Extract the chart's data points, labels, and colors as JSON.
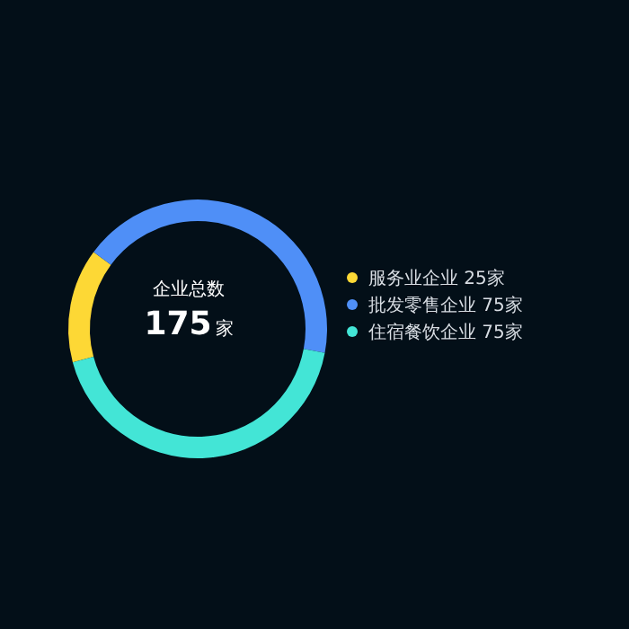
{
  "chart_data": {
    "type": "donut",
    "categories": [
      "服务业企业",
      "批发零售企业",
      "住宿餐饮企业"
    ],
    "values": [
      25,
      75,
      75
    ],
    "value_labels": [
      "25家",
      "75家",
      "75家"
    ],
    "colors": [
      "#fdd835",
      "#4f8ff7",
      "#43e5d6"
    ],
    "annotations": [
      "企业总数",
      "175",
      "家"
    ],
    "legend": "right"
  }
}
